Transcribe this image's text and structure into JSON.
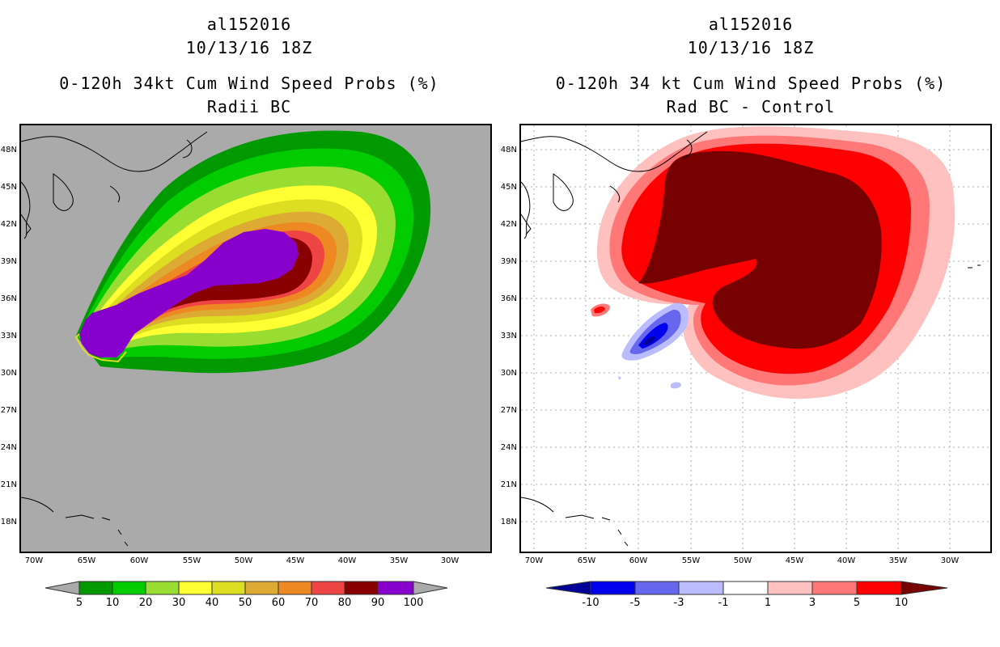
{
  "left_panel": {
    "storm_id": "al152016",
    "date": "10/13/16 18Z",
    "product": "0-120h 34kt Cum Wind Speed Probs (%)",
    "subtitle": "Radii BC",
    "legend_labels": [
      "5",
      "10",
      "20",
      "30",
      "40",
      "50",
      "60",
      "70",
      "80",
      "90",
      "100"
    ],
    "legend_colors": [
      "#009900",
      "#00cc00",
      "#99dd33",
      "#ffff33",
      "#dddd22",
      "#ddaa33",
      "#ee8822",
      "#ee4444",
      "#880000",
      "#8800cc"
    ],
    "background_color": "#aaaaaa",
    "contours": [
      {
        "level": "5",
        "color": "#009900"
      },
      {
        "level": "10",
        "color": "#00cc00"
      },
      {
        "level": "20",
        "color": "#99dd33"
      },
      {
        "level": "30",
        "color": "#ffff33"
      },
      {
        "level": "40",
        "color": "#dddd22"
      },
      {
        "level": "50",
        "color": "#ddaa33"
      },
      {
        "level": "60",
        "color": "#ee8822"
      },
      {
        "level": "70",
        "color": "#ee4444"
      },
      {
        "level": "80",
        "color": "#880000"
      },
      {
        "level": "90",
        "color": "#8800cc"
      }
    ]
  },
  "right_panel": {
    "storm_id": "al152016",
    "date": "10/13/16 18Z",
    "product": "0-120h 34 kt Cum Wind Speed Probs (%)",
    "subtitle": "Rad BC - Control",
    "legend_labels": [
      "-10",
      "-5",
      "-3",
      "-1",
      "1",
      "3",
      "5",
      "10"
    ],
    "legend_colors": [
      "#000099",
      "#0000ee",
      "#6666ee",
      "#bbbbff",
      "#ffffff",
      "#ffc0c0",
      "#ff7777",
      "#ff0000",
      "#770000"
    ],
    "background_color": "#ffffff"
  },
  "axes": {
    "lat_labels": [
      "48N",
      "45N",
      "42N",
      "39N",
      "36N",
      "33N",
      "30N",
      "27N",
      "24N",
      "21N",
      "18N"
    ],
    "lat_values": [
      48,
      45,
      42,
      39,
      36,
      33,
      30,
      27,
      24,
      21,
      18
    ],
    "lon_labels": [
      "70W",
      "65W",
      "60W",
      "55W",
      "50W",
      "45W",
      "40W",
      "35W",
      "30W"
    ],
    "lon_values": [
      -70,
      -65,
      -60,
      -55,
      -50,
      -45,
      -40,
      -35,
      -30
    ],
    "lat_range": [
      15.5,
      50
    ],
    "lon_range": [
      -71.5,
      -26.5
    ]
  }
}
